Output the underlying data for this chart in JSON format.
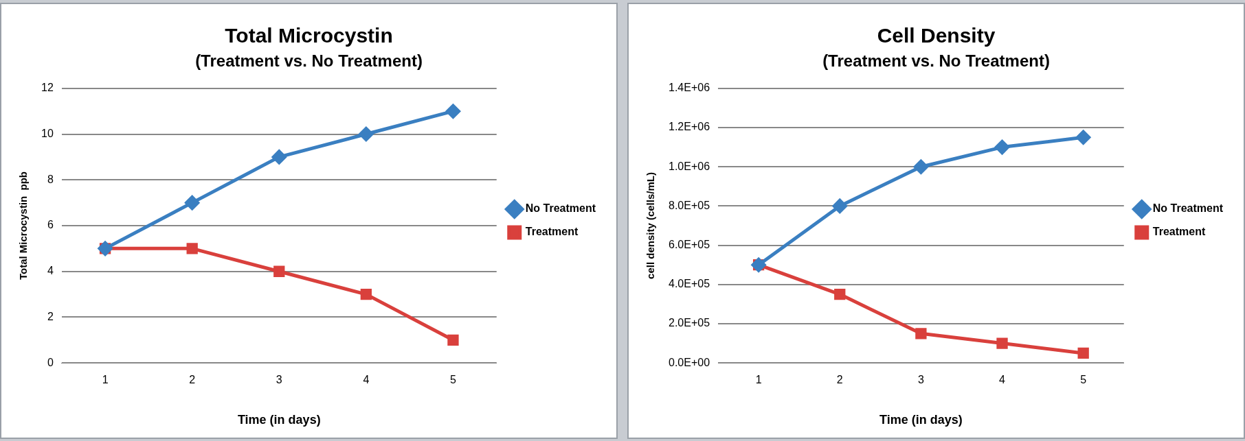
{
  "chart_data": [
    {
      "type": "line",
      "title": "Total Microcystin",
      "subtitle": "(Treatment vs. No Treatment)",
      "xlabel": "Time (in days)",
      "ylabel": "Total Microcystin  ppb",
      "categories": [
        "1",
        "2",
        "3",
        "4",
        "5"
      ],
      "series": [
        {
          "name": "No Treatment",
          "color": "#3a7fc1",
          "marker": "diamond",
          "values": [
            5,
            7,
            9,
            10,
            11
          ]
        },
        {
          "name": "Treatment",
          "color": "#d9403c",
          "marker": "square",
          "values": [
            5,
            5,
            4,
            3,
            1
          ]
        }
      ],
      "ylim": [
        0,
        12
      ],
      "yticks": [
        0,
        2,
        4,
        6,
        8,
        10,
        12
      ],
      "grid": "y",
      "legend": "right"
    },
    {
      "type": "line",
      "title": "Cell Density",
      "subtitle": "(Treatment vs. No Treatment)",
      "xlabel": "Time (in days)",
      "ylabel": "cell density (cells/mL)",
      "categories": [
        "1",
        "2",
        "3",
        "4",
        "5"
      ],
      "series": [
        {
          "name": "No Treatment",
          "color": "#3a7fc1",
          "marker": "diamond",
          "values": [
            500000,
            800000,
            1000000,
            1100000,
            1150000
          ]
        },
        {
          "name": "Treatment",
          "color": "#d9403c",
          "marker": "square",
          "values": [
            500000,
            350000,
            150000,
            100000,
            50000
          ]
        }
      ],
      "ylim": [
        0,
        1400000
      ],
      "yticks": [
        {
          "value": 0,
          "label": "0.0E+00"
        },
        {
          "value": 200000,
          "label": "2.0E+05"
        },
        {
          "value": 400000,
          "label": "4.0E+05"
        },
        {
          "value": 600000,
          "label": "6.0E+05"
        },
        {
          "value": 800000,
          "label": "8.0E+05"
        },
        {
          "value": 1000000,
          "label": "1.0E+06"
        },
        {
          "value": 1200000,
          "label": "1.2E+06"
        },
        {
          "value": 1400000,
          "label": "1.4E+06"
        }
      ],
      "grid": "y",
      "legend": "right"
    }
  ]
}
